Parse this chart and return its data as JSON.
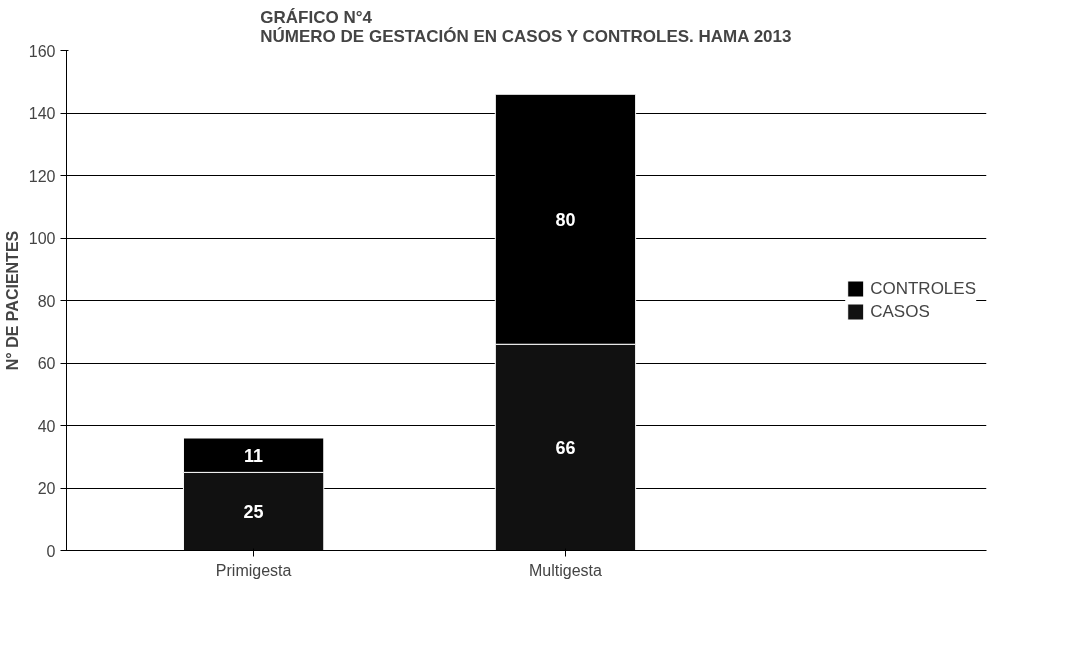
{
  "chart_data": {
    "type": "bar",
    "title": "GRÁFICO N°4\nNÚMERO DE GESTACIÓN EN CASOS Y CONTROLES. HAMA 2013",
    "ylabel": "N° DE PACIENTES",
    "categories": [
      "Primigesta",
      "Multigesta"
    ],
    "stacked": true,
    "series": [
      {
        "name": "CASOS",
        "color": "#111111",
        "values": [
          25,
          66
        ]
      },
      {
        "name": "CONTROLES",
        "color": "#000000",
        "values": [
          11,
          80
        ]
      }
    ],
    "ylim": [
      0,
      160
    ],
    "yticks": [
      0,
      20,
      40,
      60,
      80,
      100,
      120,
      140,
      160
    ],
    "grid": "y",
    "legend": "right",
    "data_labels": true
  }
}
